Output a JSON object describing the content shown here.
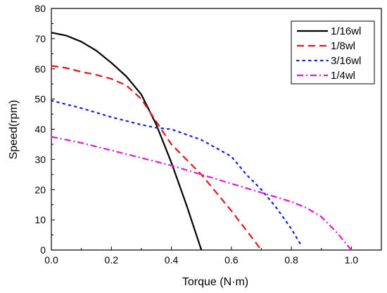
{
  "chart_data": {
    "type": "line",
    "title": "",
    "xlabel": "Torque (N·m)",
    "ylabel": "Speed(rpm)",
    "xlim": [
      0.0,
      1.1
    ],
    "ylim": [
      0,
      80
    ],
    "x_ticks": [
      0.0,
      0.2,
      0.4,
      0.6,
      0.8,
      1.0
    ],
    "y_ticks": [
      0,
      10,
      20,
      30,
      40,
      50,
      60,
      70,
      80
    ],
    "x_tick_labels": [
      "0.0",
      "0.2",
      "0.4",
      "0.6",
      "0.8",
      "1.0"
    ],
    "y_tick_labels": [
      "0",
      "10",
      "20",
      "30",
      "40",
      "50",
      "60",
      "70",
      "80"
    ],
    "grid": false,
    "legend_position": "top-right",
    "series": [
      {
        "name": "1/16wl",
        "color": "#000000",
        "dash": "solid",
        "points": [
          [
            0.0,
            72.0
          ],
          [
            0.05,
            71.0
          ],
          [
            0.1,
            69.0
          ],
          [
            0.15,
            66.0
          ],
          [
            0.2,
            62.0
          ],
          [
            0.25,
            57.5
          ],
          [
            0.3,
            51.5
          ],
          [
            0.35,
            41.5
          ],
          [
            0.4,
            29.0
          ],
          [
            0.45,
            15.0
          ],
          [
            0.5,
            0.0
          ]
        ]
      },
      {
        "name": "1/8wl",
        "color": "#e8141b",
        "dash": "dash",
        "points": [
          [
            0.0,
            61.0
          ],
          [
            0.05,
            60.3
          ],
          [
            0.1,
            59.0
          ],
          [
            0.15,
            58.0
          ],
          [
            0.2,
            56.7
          ],
          [
            0.25,
            54.5
          ],
          [
            0.3,
            50.0
          ],
          [
            0.35,
            42.5
          ],
          [
            0.4,
            35.0
          ],
          [
            0.5,
            25.0
          ],
          [
            0.6,
            13.0
          ],
          [
            0.7,
            0.0
          ]
        ]
      },
      {
        "name": "3/16wl",
        "color": "#1421d6",
        "dash": "dot",
        "points": [
          [
            0.0,
            49.5
          ],
          [
            0.1,
            47.0
          ],
          [
            0.2,
            44.0
          ],
          [
            0.3,
            41.5
          ],
          [
            0.35,
            40.5
          ],
          [
            0.4,
            40.0
          ],
          [
            0.5,
            36.5
          ],
          [
            0.6,
            31.0
          ],
          [
            0.65,
            25.0
          ],
          [
            0.7,
            20.0
          ],
          [
            0.75,
            14.0
          ],
          [
            0.8,
            7.0
          ],
          [
            0.83,
            2.0
          ]
        ]
      },
      {
        "name": "1/4wl",
        "color": "#dc18dc",
        "dash": "dashdot",
        "points": [
          [
            0.0,
            37.5
          ],
          [
            0.1,
            35.5
          ],
          [
            0.2,
            33.0
          ],
          [
            0.3,
            30.5
          ],
          [
            0.4,
            28.0
          ],
          [
            0.5,
            25.0
          ],
          [
            0.6,
            22.0
          ],
          [
            0.7,
            19.0
          ],
          [
            0.8,
            16.0
          ],
          [
            0.85,
            14.0
          ],
          [
            0.9,
            11.0
          ],
          [
            0.95,
            6.0
          ],
          [
            1.0,
            0.0
          ]
        ]
      }
    ]
  }
}
